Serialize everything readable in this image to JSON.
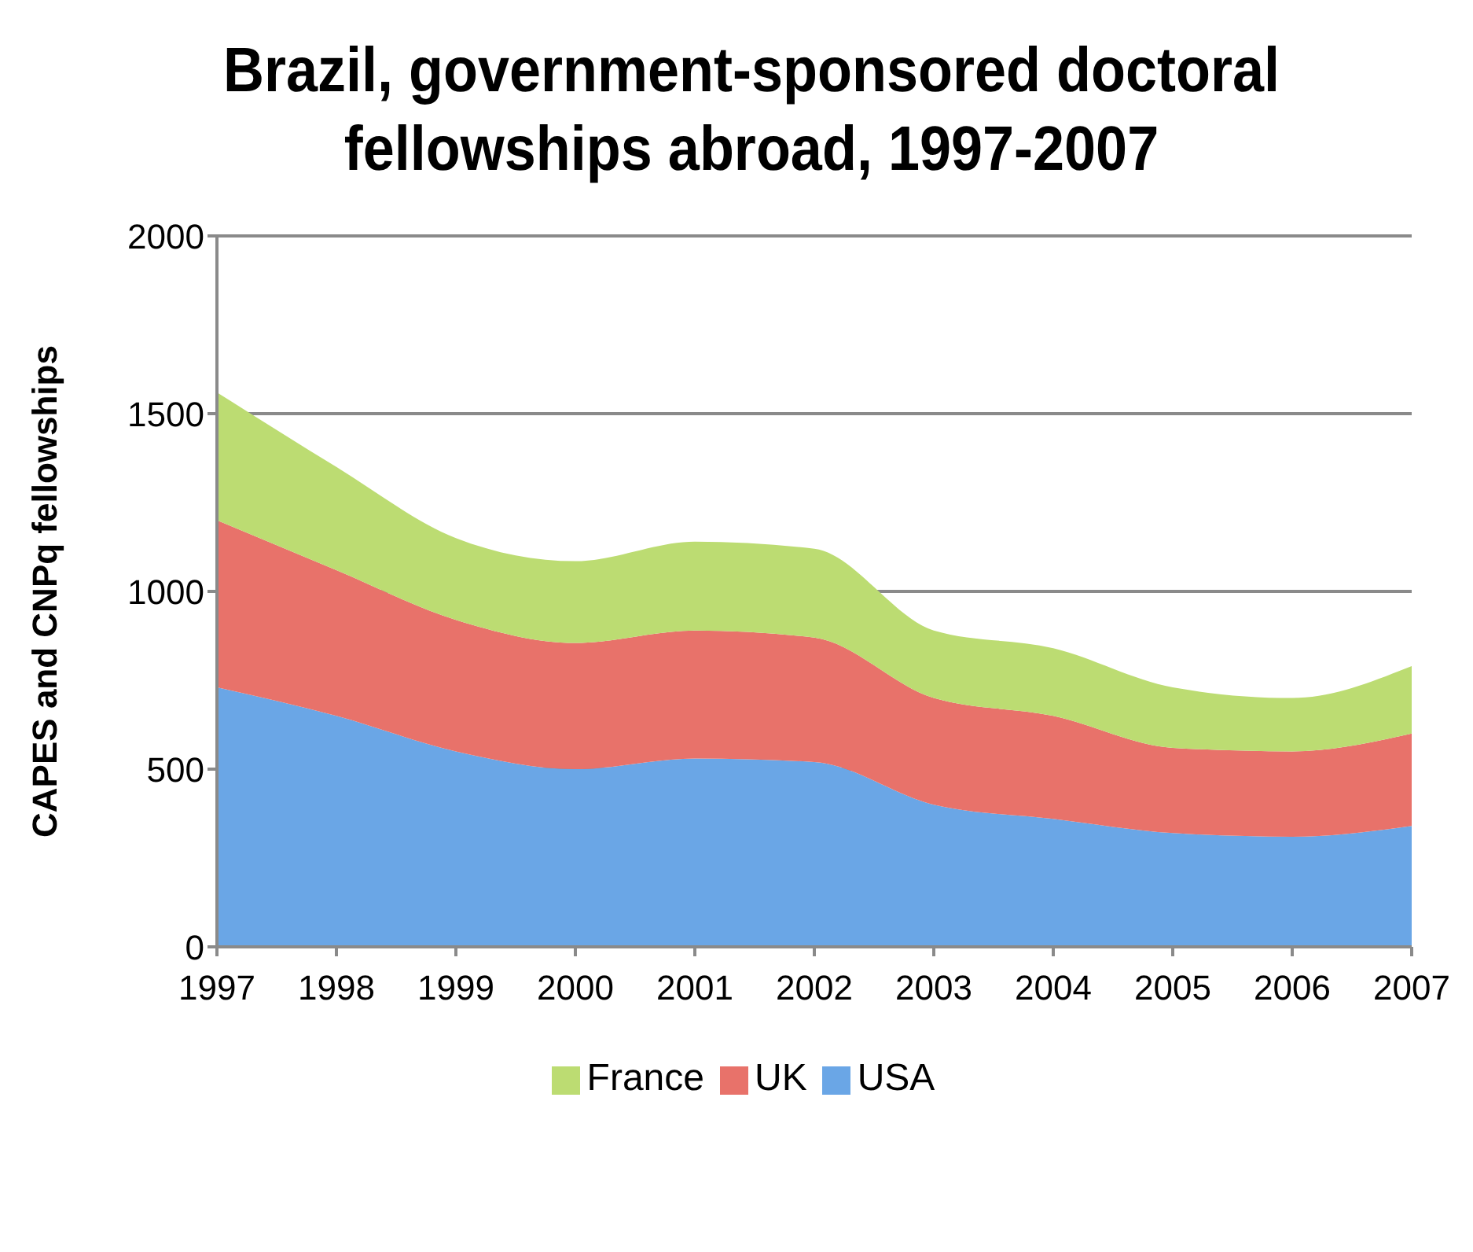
{
  "chart_data": {
    "type": "area",
    "title": "Brazil, government-sponsored doctoral fellowships abroad, 1997-2007",
    "ylabel": "CAPES and CNPq fellowships",
    "categories": [
      "1997",
      "1998",
      "1999",
      "2000",
      "2001",
      "2002",
      "2003",
      "2004",
      "2005",
      "2006",
      "2007"
    ],
    "stacked": true,
    "ylim": [
      0,
      2000
    ],
    "yticks": [
      0,
      500,
      1000,
      1500,
      2000
    ],
    "grid": "y",
    "legend": "bottom",
    "series": [
      {
        "name": "USA",
        "color": "#6aa6e6",
        "values": [
          730,
          650,
          550,
          500,
          530,
          520,
          400,
          360,
          320,
          310,
          340
        ]
      },
      {
        "name": "UK",
        "color": "#e8726a",
        "values": [
          470,
          410,
          370,
          355,
          360,
          350,
          300,
          290,
          240,
          240,
          260
        ]
      },
      {
        "name": "France",
        "color": "#bcdc72",
        "values": [
          360,
          290,
          230,
          230,
          250,
          250,
          190,
          190,
          170,
          150,
          190
        ]
      }
    ]
  }
}
